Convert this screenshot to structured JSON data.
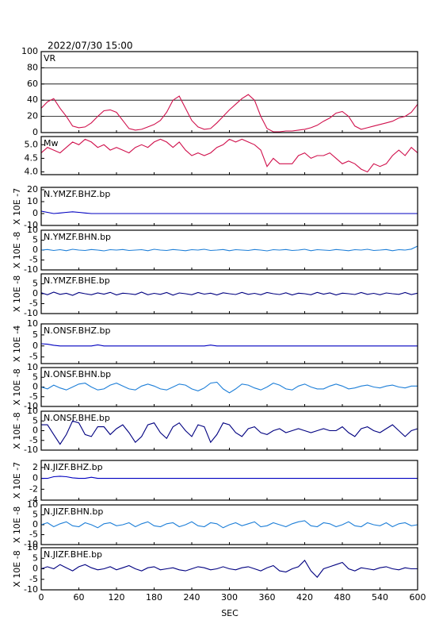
{
  "chart_data": {
    "type": "line",
    "title": "2022/07/30 15:00",
    "xlabel": "SEC",
    "xlim": [
      0,
      600
    ],
    "xticks": [
      0,
      60,
      120,
      180,
      240,
      300,
      360,
      420,
      480,
      540,
      600
    ],
    "x": [
      0,
      10,
      20,
      30,
      40,
      50,
      60,
      70,
      80,
      90,
      100,
      110,
      120,
      130,
      140,
      150,
      160,
      170,
      180,
      190,
      200,
      210,
      220,
      230,
      240,
      250,
      260,
      270,
      280,
      290,
      300,
      310,
      320,
      330,
      340,
      350,
      360,
      370,
      380,
      390,
      400,
      410,
      420,
      430,
      440,
      450,
      460,
      470,
      480,
      490,
      500,
      510,
      520,
      530,
      540,
      550,
      560,
      570,
      580,
      590,
      600
    ],
    "panels": [
      {
        "label": "VR",
        "color": "#d0104c",
        "grid": true,
        "ylim": [
          0,
          100
        ],
        "yticks": [
          0,
          20,
          40,
          60,
          80,
          100
        ],
        "values": [
          30,
          38,
          42,
          30,
          20,
          8,
          6,
          7,
          12,
          20,
          27,
          28,
          25,
          15,
          5,
          3,
          4,
          7,
          10,
          15,
          25,
          40,
          45,
          30,
          15,
          7,
          4,
          5,
          12,
          20,
          28,
          35,
          42,
          47,
          40,
          20,
          5,
          1,
          1,
          2,
          2,
          3,
          4,
          6,
          9,
          14,
          18,
          24,
          26,
          20,
          8,
          4,
          6,
          8,
          10,
          12,
          14,
          18,
          20,
          25,
          35
        ]
      },
      {
        "label": "Mw",
        "color": "#d0104c",
        "grid": false,
        "ylim": [
          3.9,
          5.3
        ],
        "yticks": [
          {
            "value": 4.0,
            "label": "4.0"
          },
          {
            "value": 4.5,
            "label": "4.5"
          },
          {
            "value": 5.0,
            "label": "5.0"
          }
        ],
        "values": [
          4.7,
          4.9,
          4.8,
          4.7,
          4.9,
          5.1,
          5.0,
          5.2,
          5.1,
          4.9,
          5.0,
          4.8,
          4.9,
          4.8,
          4.7,
          4.9,
          5.0,
          4.9,
          5.1,
          5.2,
          5.1,
          4.9,
          5.1,
          4.8,
          4.6,
          4.7,
          4.6,
          4.7,
          4.9,
          5.0,
          5.2,
          5.1,
          5.2,
          5.1,
          5.0,
          4.8,
          4.2,
          4.5,
          4.3,
          4.3,
          4.3,
          4.6,
          4.7,
          4.5,
          4.6,
          4.6,
          4.7,
          4.5,
          4.3,
          4.4,
          4.3,
          4.1,
          4.0,
          4.3,
          4.2,
          4.3,
          4.6,
          4.8,
          4.6,
          4.9,
          4.7
        ]
      },
      {
        "label": "N.YMZF.BHZ.bp",
        "unit": "X 10E -7",
        "color": "#0000c0",
        "grid": false,
        "ylim": [
          -10,
          22
        ],
        "yticks": [
          -10,
          0,
          10,
          20
        ],
        "values": [
          2,
          1,
          0,
          0.5,
          1,
          1.5,
          1,
          0.5,
          0,
          0,
          0,
          0,
          0,
          0,
          0,
          0,
          0,
          0,
          0,
          0,
          0,
          0,
          0,
          0,
          0,
          0,
          0,
          0,
          0,
          0,
          0,
          0,
          0,
          0,
          0,
          0,
          0,
          0,
          0,
          0,
          0,
          0,
          0,
          0,
          0,
          0,
          0,
          0,
          0,
          0,
          0,
          0,
          0,
          0,
          0,
          0,
          0,
          0,
          0,
          0,
          0
        ]
      },
      {
        "label": "N.YMZF.BHN.bp",
        "unit": "X 10E -8",
        "color": "#1e7fd8",
        "grid": false,
        "ylim": [
          -10,
          10
        ],
        "yticks": [
          -10,
          -5,
          0,
          5,
          10
        ],
        "values": [
          0,
          0.3,
          -0.2,
          0.2,
          -0.3,
          0.4,
          0,
          -0.2,
          0.3,
          0,
          -0.4,
          0.2,
          0,
          0.3,
          -0.2,
          0,
          0.2,
          -0.3,
          0.4,
          0,
          -0.2,
          0.3,
          0,
          -0.3,
          0.2,
          0,
          0.4,
          -0.2,
          0,
          0.3,
          -0.3,
          0.2,
          0,
          -0.2,
          0.3,
          0,
          -0.4,
          0.2,
          0,
          0.3,
          -0.2,
          0,
          0.4,
          -0.3,
          0.2,
          0,
          -0.2,
          0.3,
          0,
          -0.3,
          0.2,
          0,
          0.4,
          -0.2,
          0,
          0.3,
          -0.3,
          0.2,
          0,
          0.5,
          2
        ]
      },
      {
        "label": "N.YMZF.BHE.bp",
        "unit": "X 10E -8",
        "color": "#000080",
        "grid": false,
        "ylim": [
          -10,
          10
        ],
        "yticks": [
          -10,
          -5,
          0,
          5
        ],
        "values": [
          0.5,
          -0.5,
          0.8,
          -0.3,
          0.2,
          -0.8,
          0.6,
          0,
          -0.5,
          0.4,
          -0.2,
          0.7,
          -0.6,
          0.3,
          0,
          -0.4,
          0.8,
          -0.5,
          0.2,
          -0.3,
          0.6,
          -0.7,
          0.4,
          0,
          -0.5,
          0.6,
          -0.2,
          0.3,
          -0.6,
          0.5,
          0,
          -0.4,
          0.7,
          -0.3,
          0.2,
          -0.5,
          0.6,
          0,
          -0.4,
          0.5,
          -0.6,
          0.3,
          0,
          -0.5,
          0.7,
          -0.2,
          0.4,
          -0.6,
          0.3,
          0,
          -0.4,
          0.6,
          -0.3,
          0.2,
          -0.5,
          0.4,
          0,
          -0.3,
          0.6,
          -0.4,
          0.3
        ]
      },
      {
        "label": "N.ONSF.BHZ.bp",
        "unit": "X 10E -4",
        "color": "#0000c0",
        "grid": false,
        "ylim": [
          -8,
          10
        ],
        "yticks": [
          -5,
          0,
          5,
          10
        ],
        "values": [
          1,
          0.8,
          0.3,
          0,
          0,
          0,
          0,
          0,
          0,
          0.5,
          0,
          0,
          0,
          0,
          0,
          0,
          0,
          0,
          0,
          0,
          0,
          0,
          0,
          0,
          0,
          0,
          0,
          0.4,
          0,
          0,
          0,
          0,
          0,
          0,
          0,
          0,
          0,
          0,
          0,
          0,
          0,
          0,
          0,
          0,
          0,
          0,
          0,
          0,
          0,
          0,
          0,
          0,
          0,
          0,
          0,
          0,
          0,
          0,
          0,
          0,
          0
        ]
      },
      {
        "label": "N.ONSF.BHN.bp",
        "unit": "X 10E -8",
        "color": "#1e7fd8",
        "grid": false,
        "ylim": [
          -10,
          10
        ],
        "yticks": [
          -10,
          -5,
          0,
          5,
          10
        ],
        "values": [
          0,
          -1,
          1,
          -0.5,
          -1.5,
          0,
          1.5,
          2,
          0,
          -1.5,
          -1,
          1,
          2,
          0.5,
          -1,
          -1.5,
          0.5,
          1.5,
          0.5,
          -1,
          -1.5,
          0,
          1.5,
          1,
          -1,
          -2,
          -0.5,
          2,
          2.5,
          -1,
          -3,
          -1,
          1.5,
          1,
          -0.5,
          -1.5,
          0,
          2,
          1,
          -1,
          -1.5,
          0.5,
          1.5,
          0,
          -1,
          -1,
          0.5,
          1.5,
          0.5,
          -1,
          -0.5,
          0.5,
          1,
          0,
          -0.5,
          0.5,
          1,
          0,
          -0.5,
          0.5,
          0.5
        ]
      },
      {
        "label": "N.ONSF.BHE.bp",
        "unit": "X 10E -8",
        "color": "#000080",
        "grid": false,
        "ylim": [
          -10,
          10
        ],
        "yticks": [
          -10,
          -5,
          0,
          5,
          10
        ],
        "values": [
          3,
          3,
          -2,
          -7,
          -2,
          5,
          4,
          -2,
          -3,
          2,
          2,
          -2,
          1,
          3,
          -1,
          -6,
          -3,
          3,
          4,
          -1,
          -4,
          2,
          4,
          0,
          -3,
          3,
          2,
          -6,
          -2,
          4,
          3,
          -1,
          -3,
          1,
          2,
          -1,
          -2,
          0,
          1,
          -1,
          0,
          1,
          0,
          -1,
          0,
          1,
          0,
          0,
          2,
          -1,
          -3,
          1,
          2,
          0,
          -1,
          1,
          3,
          0,
          -3,
          0,
          1
        ]
      },
      {
        "label": "N.JIZF.BHZ.bp",
        "unit": "X 10E -7",
        "color": "#0000c0",
        "grid": false,
        "ylim": [
          -4,
          3.3
        ],
        "yticks": [
          -4,
          -2,
          0,
          2
        ],
        "values": [
          0,
          0,
          0.3,
          0.4,
          0.3,
          0.1,
          0,
          0,
          0.2,
          0,
          0,
          0,
          0,
          0,
          0,
          0,
          0,
          0,
          0,
          0,
          0,
          0,
          0,
          0,
          0,
          0,
          0,
          0,
          0,
          0,
          0,
          0,
          0,
          0,
          0,
          0,
          0,
          0,
          0,
          0,
          0,
          0,
          0,
          0,
          0,
          0,
          0,
          0,
          0,
          0,
          0,
          0,
          0,
          0,
          0,
          0,
          0,
          0,
          0,
          0,
          0
        ]
      },
      {
        "label": "N.JIZF.BHN.bp",
        "unit": "X 10E -8",
        "color": "#1e7fd8",
        "grid": false,
        "ylim": [
          -10,
          10
        ],
        "yticks": [
          -10,
          -5,
          0,
          5,
          10
        ],
        "values": [
          0,
          1,
          -1,
          0.5,
          1.5,
          -0.5,
          -1,
          1,
          0,
          -1.5,
          0.5,
          1,
          -0.5,
          0,
          1,
          -1,
          0.5,
          1.5,
          -0.5,
          -1,
          0.5,
          1,
          -1,
          0,
          1.5,
          -0.5,
          -1,
          1,
          0.5,
          -1.5,
          0,
          1,
          -0.5,
          0.5,
          1.5,
          -1,
          -0.5,
          1,
          0,
          -1,
          0.5,
          1.5,
          2,
          -0.5,
          -1,
          1,
          0.5,
          -1,
          0,
          1.5,
          -0.5,
          -1,
          1,
          0,
          -0.5,
          1,
          -1,
          0.5,
          1,
          -0.5,
          0
        ]
      },
      {
        "label": "N.JIZF.BHE.bp",
        "unit": "X 10E -8",
        "color": "#000080",
        "grid": false,
        "ylim": [
          -10,
          10
        ],
        "yticks": [
          -10,
          -5,
          0,
          5,
          10
        ],
        "values": [
          0,
          1,
          0,
          2,
          0.5,
          -1,
          1,
          2,
          0.5,
          -0.5,
          0,
          1,
          -0.5,
          0.5,
          1.5,
          0,
          -1,
          0.5,
          1,
          -0.5,
          0,
          0.5,
          -0.5,
          -1,
          0,
          1,
          0.5,
          -0.5,
          0,
          1,
          0,
          -0.5,
          0.5,
          1,
          0,
          -1,
          0.5,
          1.5,
          -1,
          -1.5,
          0,
          1,
          4,
          -1,
          -4,
          0,
          1,
          2,
          3,
          0,
          -1,
          0.5,
          0,
          -0.5,
          0.5,
          1,
          0,
          -0.5,
          0.5,
          0,
          0
        ]
      }
    ]
  }
}
